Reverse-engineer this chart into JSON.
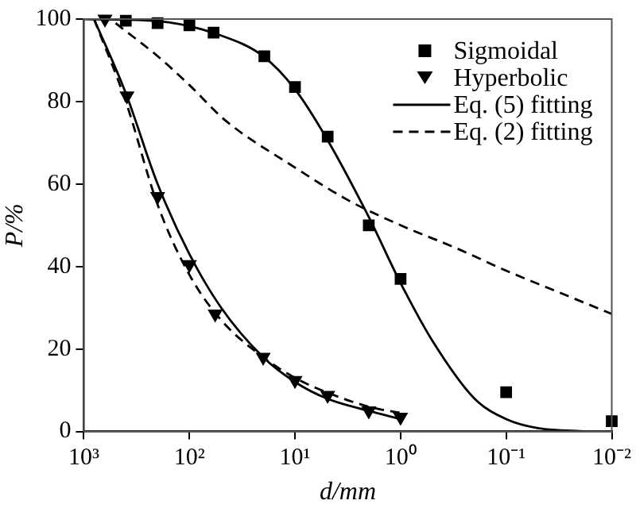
{
  "chart_data": {
    "type": "scatter",
    "xlabel": "d/mm",
    "ylabel": "P/%",
    "log": "x",
    "xlim": [
      1000,
      0.01
    ],
    "xticks": [
      {
        "value": 1000,
        "label": "10³"
      },
      {
        "value": 100,
        "label": "10²"
      },
      {
        "value": 10,
        "label": "10¹"
      },
      {
        "value": 1,
        "label": "10⁰"
      },
      {
        "value": 0.1,
        "label": "10⁻¹"
      },
      {
        "value": 0.01,
        "label": "10⁻²"
      }
    ],
    "ylim": [
      0,
      100
    ],
    "yticks": [
      0,
      20,
      40,
      60,
      80,
      100
    ],
    "grid": false,
    "legend": "top right",
    "series": [
      {
        "name": "Sigmoidal",
        "type": "scatter",
        "marker": "square",
        "color": "#000000",
        "x": [
          400,
          200,
          100,
          59,
          19.5,
          10,
          4.9,
          2,
          1,
          0.1,
          0.01
        ],
        "values": [
          99.6,
          99,
          98.5,
          96.7,
          91,
          83.5,
          71.5,
          50,
          37,
          9.5,
          2.5
        ]
      },
      {
        "name": "Hyperbolic",
        "type": "scatter",
        "marker": "triangle",
        "color": "#000000",
        "x": [
          630,
          390,
          200,
          100,
          57,
          20,
          10,
          4.9,
          2,
          1
        ],
        "values": [
          100,
          81.4,
          57,
          40.5,
          28.5,
          18,
          12.4,
          8.8,
          5,
          3.5
        ]
      },
      {
        "name": "Eq. (5) fitting",
        "type": "line",
        "marker": "none",
        "line_style": "solid",
        "color": "#000000",
        "x": [
          1000,
          200,
          50,
          20,
          10,
          5,
          2,
          1,
          0.5,
          0.2,
          0.1,
          0.05,
          0.02,
          0.01
        ],
        "values": [
          100,
          99.5,
          96,
          91,
          83,
          71,
          52,
          36,
          22,
          8,
          3,
          0.8,
          0.1,
          0
        ]
      },
      {
        "type": "line",
        "marker": "none",
        "line_style": "solid",
        "color": "#000000",
        "x": [
          800,
          400,
          200,
          100,
          50,
          20,
          10,
          5,
          2,
          1
        ],
        "values": [
          100,
          82,
          60,
          43,
          30,
          18,
          12,
          8,
          5,
          3
        ]
      },
      {
        "name": "Eq. (2) fitting",
        "type": "line",
        "marker": "none",
        "line_style": "dashed",
        "color": "#000000",
        "x": [
          500,
          200,
          100,
          46,
          10,
          3.1,
          1,
          0.3,
          0.1,
          0.03,
          0.01
        ],
        "values": [
          99,
          91,
          84,
          75.5,
          64,
          56,
          50,
          44.5,
          39,
          33.5,
          28.5
        ]
      },
      {
        "type": "line",
        "marker": "none",
        "line_style": "dashed",
        "color": "#000000",
        "x": [
          800,
          400,
          200,
          100,
          50,
          20,
          10,
          5,
          2,
          1
        ],
        "values": [
          100,
          80,
          55,
          38,
          27,
          18,
          13,
          9.5,
          6,
          4.5
        ]
      }
    ]
  }
}
